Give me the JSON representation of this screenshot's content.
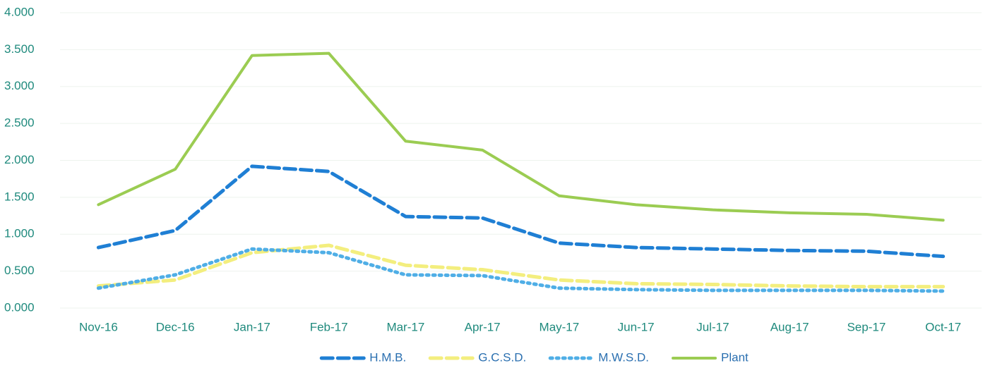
{
  "chart_data": {
    "type": "line",
    "categories": [
      "Nov-16",
      "Dec-16",
      "Jan-17",
      "Feb-17",
      "Mar-17",
      "Apr-17",
      "May-17",
      "Jun-17",
      "Jul-17",
      "Aug-17",
      "Sep-17",
      "Oct-17"
    ],
    "series": [
      {
        "name": "H.M.B.",
        "color": "#1f7fd4",
        "style": "dashed",
        "values": [
          0.82,
          1.05,
          1.92,
          1.85,
          1.24,
          1.22,
          0.88,
          0.82,
          0.8,
          0.78,
          0.77,
          0.7
        ]
      },
      {
        "name": "G.C.S.D.",
        "color": "#f3ee7e",
        "style": "dashed",
        "values": [
          0.3,
          0.38,
          0.75,
          0.85,
          0.58,
          0.52,
          0.38,
          0.33,
          0.32,
          0.3,
          0.29,
          0.29
        ]
      },
      {
        "name": "M.W.S.D.",
        "color": "#4faee6",
        "style": "dotted",
        "values": [
          0.27,
          0.45,
          0.8,
          0.75,
          0.45,
          0.44,
          0.27,
          0.25,
          0.24,
          0.24,
          0.24,
          0.23
        ]
      },
      {
        "name": "Plant",
        "color": "#9bcc52",
        "style": "solid",
        "values": [
          1.4,
          1.88,
          3.42,
          3.45,
          2.26,
          2.14,
          1.52,
          1.4,
          1.33,
          1.29,
          1.27,
          1.19
        ]
      }
    ],
    "ylim": [
      0,
      4
    ],
    "yticks": [
      {
        "value": 0,
        "label": "0.000"
      },
      {
        "value": 0.5,
        "label": "0.500"
      },
      {
        "value": 1,
        "label": "1.000"
      },
      {
        "value": 1.5,
        "label": "1.500"
      },
      {
        "value": 2,
        "label": "2.000"
      },
      {
        "value": 2.5,
        "label": "2.500"
      },
      {
        "value": 3,
        "label": "3.000"
      },
      {
        "value": 3.5,
        "label": "3.500"
      },
      {
        "value": 4,
        "label": "4.000"
      }
    ],
    "grid": true,
    "legend": "bottom"
  }
}
